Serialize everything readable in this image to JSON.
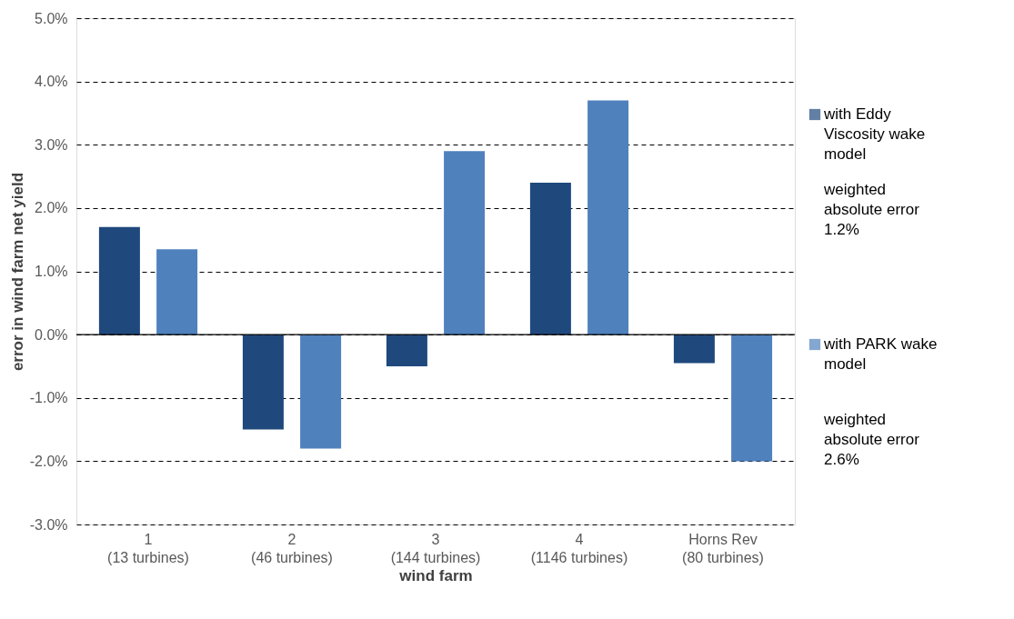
{
  "chart_data": {
    "type": "bar",
    "xlabel": "wind farm",
    "ylabel": "error  in wind farm net yield",
    "categories": [
      "1\n(13 turbines)",
      "2\n(46 turbines)",
      "3\n(144 turbines)",
      "4\n(1146 turbines)",
      "Horns Rev\n(80 turbines)"
    ],
    "series": [
      {
        "name": "with Eddy Viscosity wake model",
        "color": "#1f497d",
        "values": [
          1.7,
          -1.5,
          -0.5,
          2.4,
          -0.45
        ]
      },
      {
        "name": "with PARK wake model",
        "color": "#4f81bd",
        "values": [
          1.35,
          -1.8,
          2.9,
          3.7,
          -2.0
        ]
      }
    ],
    "annotations": [
      "weighted absolute error 1.2%",
      "weighted absolute error 2.6%"
    ],
    "ylim": [
      -3,
      5
    ],
    "yticks": [
      {
        "value": -3,
        "label": "-3.0%"
      },
      {
        "value": -2,
        "label": "-2.0%"
      },
      {
        "value": -1,
        "label": "-1.0%"
      },
      {
        "value": 0,
        "label": "0.0%"
      },
      {
        "value": 1,
        "label": "1.0%"
      },
      {
        "value": 2,
        "label": "2.0%"
      },
      {
        "value": 3,
        "label": "3.0%"
      },
      {
        "value": 4,
        "label": "4.0%"
      },
      {
        "value": 5,
        "label": "5.0%"
      }
    ],
    "grid": "y",
    "legend": "right"
  }
}
